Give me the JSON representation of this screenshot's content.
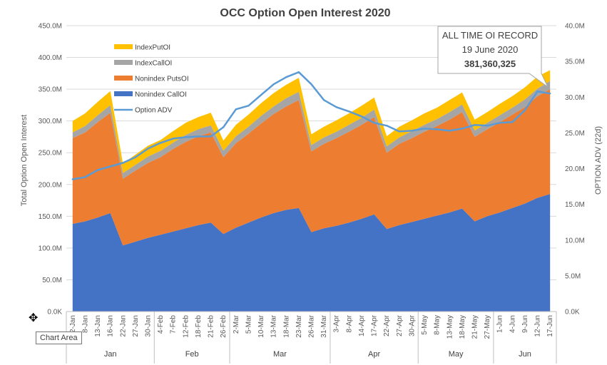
{
  "chart_data": {
    "type": "area",
    "title": "OCC Option Open Interest 2020",
    "ylabel": "Total Option Open Interest",
    "y2label": "OPTION ADV (22d)",
    "ylim": [
      0,
      450000000
    ],
    "y2lim": [
      0,
      40000000
    ],
    "yticks": [
      "0.0K",
      "50.0M",
      "100.0M",
      "150.0M",
      "200.0M",
      "250.0M",
      "300.0M",
      "350.0M",
      "400.0M",
      "450.0M"
    ],
    "y2ticks": [
      "0.0K",
      "5.0M",
      "10.0M",
      "15.0M",
      "20.0M",
      "25.0M",
      "30.0M",
      "35.0M",
      "40.0M"
    ],
    "xticks": [
      "2-Jan",
      "8-Jan",
      "13-Jan",
      "16-Jan",
      "22-Jan",
      "27-Jan",
      "30-Jan",
      "4-Feb",
      "7-Feb",
      "12-Feb",
      "18-Feb",
      "21-Feb",
      "26-Feb",
      "2-Mar",
      "5-Mar",
      "10-Mar",
      "13-Mar",
      "18-Mar",
      "23-Mar",
      "26-Mar",
      "31-Mar",
      "3-Apr",
      "8-Apr",
      "14-Apr",
      "17-Apr",
      "22-Apr",
      "27-Apr",
      "30-Apr",
      "5-May",
      "8-May",
      "13-May",
      "18-May",
      "21-May",
      "27-May",
      "1-Jun",
      "4-Jun",
      "9-Jun",
      "12-Jun",
      "17-Jun"
    ],
    "months": [
      "Jan",
      "Feb",
      "Mar",
      "Apr",
      "May",
      "Jun"
    ],
    "month_bounds": [
      0,
      7,
      13,
      21,
      28,
      34,
      39
    ],
    "legend_position": "top-left",
    "series": [
      {
        "name": "IndexPutOI",
        "color": "#FFC000",
        "kind": "stack",
        "values": [
          18,
          20,
          21,
          22,
          15,
          16,
          17,
          17,
          18,
          19,
          19,
          20,
          16,
          18,
          19,
          20,
          21,
          21,
          22,
          17,
          17,
          18,
          18,
          19,
          19,
          16,
          17,
          17,
          18,
          18,
          19,
          19,
          17,
          17,
          18,
          18,
          19,
          19,
          17
        ]
      },
      {
        "name": "IndexCallOI",
        "color": "#A5A5A5",
        "kind": "stack",
        "values": [
          9,
          10,
          11,
          12,
          9,
          9,
          10,
          10,
          10,
          11,
          11,
          11,
          10,
          11,
          11,
          12,
          12,
          13,
          13,
          10,
          10,
          10,
          11,
          11,
          12,
          10,
          10,
          11,
          11,
          11,
          12,
          12,
          10,
          10,
          11,
          11,
          12,
          12,
          13
        ]
      },
      {
        "name": "Nonindex PutsOI",
        "color": "#ED7D31",
        "kind": "stack",
        "values": [
          135,
          140,
          150,
          158,
          105,
          112,
          118,
          122,
          130,
          136,
          140,
          142,
          121,
          133,
          140,
          148,
          156,
          163,
          170,
          127,
          133,
          138,
          143,
          148,
          153,
          120,
          128,
          132,
          137,
          141,
          146,
          152,
          133,
          137,
          142,
          147,
          152,
          160,
          165
        ]
      },
      {
        "name": "Nonindex CallOI",
        "color": "#4472C4",
        "kind": "stack",
        "values": [
          138,
          142,
          148,
          155,
          104,
          110,
          116,
          121,
          126,
          131,
          136,
          140,
          122,
          132,
          140,
          148,
          155,
          160,
          163,
          125,
          131,
          135,
          140,
          146,
          153,
          130,
          136,
          141,
          146,
          151,
          156,
          162,
          142,
          150,
          156,
          163,
          170,
          179,
          185
        ]
      },
      {
        "name": "Option ADV",
        "color": "#5B9BD5",
        "kind": "line",
        "axis": "secondary",
        "values": [
          18.5,
          18.8,
          19.8,
          20.3,
          20.8,
          21.6,
          22.8,
          23.6,
          24.2,
          24.4,
          24.5,
          24.5,
          25.8,
          28.3,
          28.8,
          30.3,
          31.8,
          32.8,
          33.5,
          31.8,
          29.6,
          28.6,
          28.0,
          27.3,
          26.4,
          26.0,
          25.2,
          25.3,
          25.6,
          25.5,
          25.3,
          25.6,
          26.1,
          26.0,
          26.4,
          26.5,
          28.2,
          30.8,
          30.5
        ]
      }
    ],
    "annotation": {
      "line1": "ALL TIME OI RECORD",
      "line2": "19 June 2020",
      "line3": "381,360,325"
    }
  },
  "ui": {
    "tooltip": "Chart Area",
    "cursor_glyph": "✥"
  }
}
